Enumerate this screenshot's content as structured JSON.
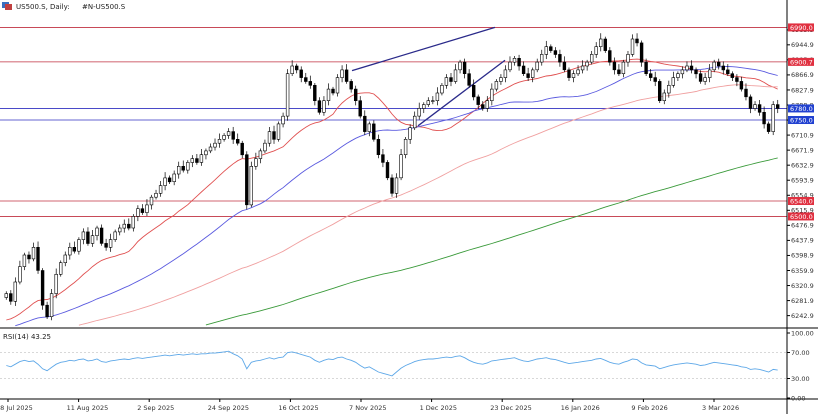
{
  "header": {
    "symbol_line": "US500.S, Daily:",
    "indicator_line": "#N-US500.S"
  },
  "colors": {
    "candle_up_fill": "#ffffff",
    "candle_down_fill": "#000000",
    "candle_outline": "#000000",
    "ma_fast": "#e05050",
    "ma_mid": "#5a5adf",
    "ma_slow": "#f0a0a0",
    "ma_long": "#3a9a3a",
    "trendline": "#2a2a8a",
    "resistance_line": "#c03040",
    "support_line": "#3030c0",
    "rsi_line": "#5ea8e8",
    "rsi_level": "#cccccc",
    "axis": "#000000"
  },
  "chart_data": {
    "type": "candlestick",
    "title": "US500.S, Daily: #N-US500.S",
    "ylim": [
      6216,
      7030
    ],
    "y_ticks": [
      "6983.5",
      "6944.9",
      "6905.9",
      "6866.9",
      "6827.9",
      "6788.9",
      "6749.9",
      "6710.9",
      "6671.9",
      "6632.9",
      "6593.9",
      "6554.9",
      "6515.9",
      "6476.9",
      "6437.9",
      "6398.9",
      "6359.9",
      "6320.9",
      "6281.9",
      "6242.9"
    ],
    "x_ticks": [
      "18 Jul 2025",
      "11 Aug 2025",
      "2 Sep 2025",
      "24 Sep 2025",
      "16 Oct 2025",
      "7 Nov 2025",
      "1 Dec 2025",
      "23 Dec 2025",
      "16 Jan 2026",
      "9 Feb 2026",
      "3 Mar 2026"
    ],
    "closes": [
      6300,
      6280,
      6330,
      6370,
      6400,
      6390,
      6420,
      6360,
      6270,
      6240,
      6300,
      6350,
      6380,
      6400,
      6420,
      6410,
      6440,
      6460,
      6430,
      6450,
      6470,
      6430,
      6420,
      6440,
      6460,
      6470,
      6480,
      6470,
      6500,
      6520,
      6510,
      6530,
      6550,
      6560,
      6580,
      6600,
      6590,
      6610,
      6630,
      6620,
      6640,
      6650,
      6640,
      6660,
      6670,
      6680,
      6690,
      6700,
      6710,
      6720,
      6700,
      6690,
      6660,
      6530,
      6630,
      6650,
      6670,
      6690,
      6720,
      6700,
      6740,
      6760,
      6870,
      6890,
      6880,
      6860,
      6850,
      6840,
      6800,
      6770,
      6800,
      6830,
      6820,
      6860,
      6880,
      6850,
      6830,
      6800,
      6760,
      6720,
      6740,
      6700,
      6660,
      6640,
      6600,
      6560,
      6600,
      6660,
      6700,
      6730,
      6760,
      6780,
      6790,
      6800,
      6800,
      6820,
      6840,
      6860,
      6850,
      6880,
      6900,
      6870,
      6840,
      6810,
      6790,
      6780,
      6800,
      6830,
      6850,
      6860,
      6880,
      6900,
      6910,
      6890,
      6870,
      6860,
      6880,
      6900,
      6920,
      6940,
      6930,
      6920,
      6900,
      6880,
      6860,
      6870,
      6880,
      6890,
      6900,
      6920,
      6940,
      6960,
      6930,
      6900,
      6880,
      6870,
      6900,
      6920,
      6960,
      6950,
      6900,
      6870,
      6860,
      6850,
      6800,
      6820,
      6840,
      6860,
      6870,
      6880,
      6890,
      6880,
      6870,
      6850,
      6860,
      6880,
      6900,
      6890,
      6880,
      6870,
      6860,
      6850,
      6830,
      6810,
      6780,
      6790,
      6770,
      6740,
      6720,
      6790,
      6780
    ],
    "x_start_label": "18 Jul 2025",
    "moving_averages": [
      {
        "period": 20,
        "color": "#e05050"
      },
      {
        "period": 50,
        "color": "#5a5adf"
      },
      {
        "period": 100,
        "color": "#f0a0a0"
      },
      {
        "period": 200,
        "color": "#3a9a3a"
      }
    ],
    "horizontal_levels": [
      {
        "label": "6990.0",
        "value": 6990.0,
        "kind": "resistance",
        "badge_color": "#e03040"
      },
      {
        "label": "6900.7",
        "value": 6900.7,
        "kind": "resistance",
        "badge_color": "#e03040"
      },
      {
        "label": "6780.0",
        "value": 6780.0,
        "kind": "support",
        "badge_color": "#2040d0"
      },
      {
        "label": "6750.0",
        "value": 6750.0,
        "kind": "support",
        "badge_color": "#2040d0"
      },
      {
        "label": "6540.0",
        "value": 6540.0,
        "kind": "resistance",
        "badge_color": "#e03040"
      },
      {
        "label": "6500.0",
        "value": 6500.0,
        "kind": "resistance",
        "badge_color": "#e03040"
      }
    ],
    "last_price_label": "6783.0",
    "rsi": {
      "label": "RSI(14) 43.25",
      "ylim": [
        0,
        100
      ],
      "y_ticks": [
        "100.00",
        "70.00",
        "30.00",
        "0.00"
      ],
      "levels": [
        70,
        30
      ],
      "values": [
        50,
        48,
        52,
        56,
        58,
        56,
        57,
        52,
        45,
        42,
        47,
        52,
        55,
        56,
        58,
        57,
        59,
        60,
        57,
        58,
        60,
        56,
        55,
        57,
        58,
        59,
        60,
        59,
        61,
        62,
        61,
        62,
        63,
        64,
        65,
        66,
        65,
        66,
        67,
        66,
        67,
        68,
        67,
        68,
        68,
        69,
        69,
        70,
        71,
        72,
        68,
        65,
        60,
        45,
        55,
        57,
        58,
        60,
        62,
        60,
        62,
        63,
        70,
        71,
        69,
        67,
        65,
        63,
        58,
        55,
        58,
        60,
        59,
        62,
        63,
        60,
        58,
        55,
        50,
        46,
        48,
        44,
        40,
        38,
        36,
        34,
        40,
        46,
        50,
        53,
        56,
        58,
        59,
        60,
        60,
        61,
        62,
        63,
        62,
        64,
        65,
        62,
        58,
        55,
        53,
        52,
        54,
        57,
        58,
        59,
        60,
        61,
        62,
        59,
        57,
        56,
        58,
        60,
        61,
        62,
        60,
        59,
        57,
        55,
        53,
        54,
        55,
        56,
        57,
        58,
        60,
        61,
        58,
        55,
        53,
        52,
        55,
        57,
        60,
        59,
        54,
        51,
        50,
        49,
        45,
        47,
        49,
        51,
        52,
        53,
        54,
        53,
        52,
        50,
        51,
        53,
        55,
        54,
        53,
        52,
        51,
        50,
        48,
        47,
        44,
        45,
        44,
        42,
        40,
        44,
        43
      ]
    }
  }
}
